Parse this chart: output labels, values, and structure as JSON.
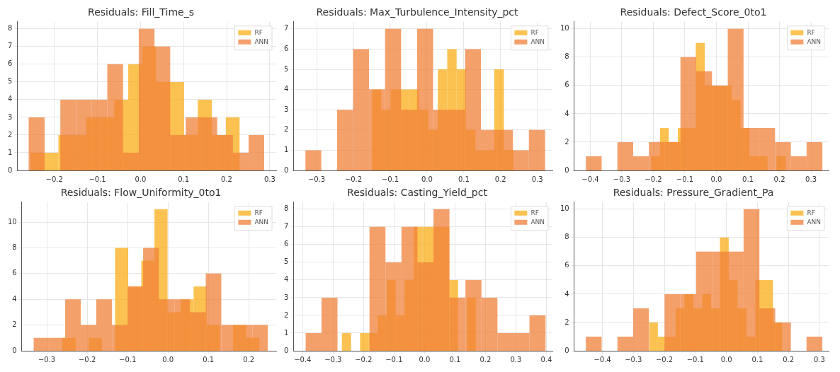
{
  "chart_data": [
    {
      "type": "bar",
      "title": "Residuals: Fill_Time_s",
      "legend": "top right",
      "grid": true,
      "xlim": [
        -0.286,
        0.315
      ],
      "xticks": [
        {
          "value": -0.2,
          "label": "−0.2"
        },
        {
          "value": -0.1,
          "label": "−0.1"
        },
        {
          "value": 0,
          "label": "0.0"
        },
        0.1,
        0.2,
        0.3
      ],
      "ylim": [
        0,
        8.4
      ],
      "yticks": [
        0,
        1,
        2,
        3,
        4,
        5,
        6,
        7,
        8
      ],
      "series": [
        {
          "name": "RF",
          "color": "#fbc252",
          "x": [
            -0.239,
            -0.207,
            -0.174,
            -0.142,
            -0.11,
            -0.077,
            -0.045,
            -0.012,
            0.02,
            0.052,
            0.085,
            0.117,
            0.149,
            0.182,
            0.214
          ],
          "values": [
            1,
            1,
            2,
            2,
            3,
            3,
            4,
            6,
            7,
            5,
            5,
            2,
            4,
            2,
            3
          ]
        },
        {
          "name": "ANN",
          "color": "#f4a06b",
          "x": [
            -0.241,
            -0.204,
            -0.168,
            -0.131,
            -0.095,
            -0.059,
            -0.022,
            0.014,
            0.051,
            0.087,
            0.123,
            0.16,
            0.196,
            0.233,
            0.269
          ],
          "values": [
            3,
            0,
            4,
            4,
            4,
            6,
            1,
            8,
            7,
            2,
            3,
            3,
            2,
            1,
            2
          ]
        }
      ]
    },
    {
      "type": "bar",
      "title": "Residuals: Max_Turbulence_Intensity_pct",
      "legend": "top right",
      "grid": true,
      "xlim": [
        -0.363,
        0.341
      ],
      "xticks": [
        {
          "value": -0.3,
          "label": "−0.3"
        },
        {
          "value": -0.2,
          "label": "−0.2"
        },
        {
          "value": -0.1,
          "label": "−0.1"
        },
        {
          "value": 0,
          "label": "0.0"
        },
        0.1,
        0.2,
        0.3
      ],
      "ylim": [
        0,
        7.35
      ],
      "yticks": [
        0,
        1,
        2,
        3,
        4,
        5,
        6,
        7
      ],
      "series": [
        {
          "name": "RF",
          "color": "#fbc252",
          "x": [
            -0.137,
            -0.112,
            -0.086,
            -0.06,
            -0.035,
            -0.009,
            0.017,
            0.042,
            0.068,
            0.093,
            0.119,
            0.145,
            0.17,
            0.196,
            0.222
          ],
          "values": [
            4,
            3,
            4,
            4,
            4,
            3,
            2,
            5,
            6,
            5,
            2,
            1,
            1,
            5,
            1
          ]
        },
        {
          "name": "ANN",
          "color": "#f4a06b",
          "x": [
            -0.309,
            -0.266,
            -0.223,
            -0.179,
            -0.136,
            -0.092,
            -0.049,
            -0.005,
            0.038,
            0.082,
            0.125,
            0.168,
            0.212,
            0.255,
            0.299
          ],
          "values": [
            1,
            0,
            3,
            6,
            4,
            7,
            3,
            7,
            3,
            3,
            6,
            2,
            2,
            1,
            2
          ]
        }
      ]
    },
    {
      "type": "bar",
      "title": "Residuals: Defect_Score_0to1",
      "legend": "top right",
      "grid": true,
      "xlim": [
        -0.451,
        0.356
      ],
      "xticks": [
        {
          "value": -0.4,
          "label": "−0.4"
        },
        {
          "value": -0.3,
          "label": "−0.3"
        },
        {
          "value": -0.2,
          "label": "−0.2"
        },
        {
          "value": -0.1,
          "label": "−0.1"
        },
        {
          "value": 0,
          "label": "0.0"
        },
        0.1,
        0.2,
        0.3
      ],
      "ylim": [
        0,
        10.5
      ],
      "yticks": [
        0,
        2,
        4,
        6,
        8,
        10
      ],
      "series": [
        {
          "name": "RF",
          "color": "#fbc252",
          "x": [
            -0.193,
            -0.165,
            -0.137,
            -0.108,
            -0.08,
            -0.051,
            -0.023,
            0.005,
            0.034,
            0.062,
            0.091,
            0.119,
            0.148,
            0.176,
            0.205
          ],
          "values": [
            1,
            3,
            2,
            3,
            3,
            9,
            6,
            6,
            6,
            5,
            3,
            1,
            1,
            0,
            1
          ]
        },
        {
          "name": "ANN",
          "color": "#f4a06b",
          "x": [
            -0.389,
            -0.339,
            -0.289,
            -0.239,
            -0.189,
            -0.139,
            -0.089,
            -0.039,
            0.011,
            0.061,
            0.111,
            0.161,
            0.211,
            0.261,
            0.311
          ],
          "values": [
            1,
            0,
            2,
            1,
            2,
            2,
            8,
            7,
            6,
            10,
            3,
            3,
            2,
            1,
            2
          ]
        }
      ]
    },
    {
      "type": "bar",
      "title": "Residuals: Flow_Uniformity_0to1",
      "legend": "top right",
      "grid": true,
      "xlim": [
        -0.362,
        0.268
      ],
      "xticks": [
        {
          "value": -0.3,
          "label": "−0.3"
        },
        {
          "value": -0.2,
          "label": "−0.2"
        },
        {
          "value": -0.1,
          "label": "−0.1"
        },
        {
          "value": 0,
          "label": "0.0"
        },
        0.1,
        0.2
      ],
      "ylim": [
        0,
        11.55
      ],
      "yticks": [
        0,
        2,
        4,
        6,
        8,
        10
      ],
      "series": [
        {
          "name": "RF",
          "color": "#fbc252",
          "x": [
            -0.245,
            -0.212,
            -0.18,
            -0.147,
            -0.115,
            -0.082,
            -0.05,
            -0.017,
            0.015,
            0.047,
            0.08,
            0.112,
            0.145,
            0.177,
            0.21
          ],
          "values": [
            1,
            0,
            1,
            0,
            8,
            5,
            7,
            11,
            3,
            4,
            5,
            2,
            0,
            2,
            1
          ]
        },
        {
          "name": "ANN",
          "color": "#f4a06b",
          "x": [
            -0.313,
            -0.274,
            -0.235,
            -0.197,
            -0.158,
            -0.119,
            -0.081,
            -0.042,
            -0.003,
            0.035,
            0.074,
            0.113,
            0.151,
            0.19,
            0.228
          ],
          "values": [
            1,
            1,
            4,
            2,
            4,
            2,
            5,
            8,
            4,
            4,
            3,
            6,
            2,
            2,
            2
          ]
        }
      ]
    },
    {
      "type": "bar",
      "title": "Residuals: Casting_Yield_pct",
      "legend": "top right",
      "grid": true,
      "xlim": [
        -0.43,
        0.42
      ],
      "xticks": [
        {
          "value": -0.4,
          "label": "−0.4"
        },
        {
          "value": -0.3,
          "label": "−0.3"
        },
        {
          "value": -0.2,
          "label": "−0.2"
        },
        {
          "value": -0.1,
          "label": "−0.1"
        },
        {
          "value": 0,
          "label": "0.0"
        },
        0.1,
        0.2,
        0.3,
        0.4
      ],
      "ylim": [
        0,
        8.4
      ],
      "yticks": [
        0,
        1,
        2,
        3,
        4,
        5,
        6,
        7,
        8
      ],
      "series": [
        {
          "name": "RF",
          "color": "#fbc252",
          "x": [
            -0.256,
            -0.226,
            -0.197,
            -0.168,
            -0.138,
            -0.109,
            -0.08,
            -0.05,
            -0.021,
            0.008,
            0.037,
            0.067,
            0.096,
            0.125,
            0.154
          ],
          "values": [
            1,
            0,
            1,
            1,
            2,
            4,
            2,
            4,
            7,
            7,
            7,
            7,
            4,
            0,
            3
          ]
        },
        {
          "name": "ANN",
          "color": "#f4a06b",
          "x": [
            -0.364,
            -0.312,
            -0.259,
            -0.207,
            -0.154,
            -0.102,
            -0.049,
            0.003,
            0.056,
            0.108,
            0.161,
            0.213,
            0.266,
            0.318,
            0.371
          ],
          "values": [
            1,
            3,
            0,
            0,
            7,
            5,
            7,
            5,
            8,
            3,
            4,
            3,
            1,
            1,
            2
          ]
        }
      ]
    },
    {
      "type": "bar",
      "title": "Residuals: Pressure_Gradient_Pa",
      "legend": "top right",
      "grid": true,
      "xlim": [
        -0.491,
        0.33
      ],
      "xticks": [
        {
          "value": -0.4,
          "label": "−0.4"
        },
        {
          "value": -0.3,
          "label": "−0.3"
        },
        {
          "value": -0.2,
          "label": "−0.2"
        },
        {
          "value": -0.1,
          "label": "−0.1"
        },
        {
          "value": 0,
          "label": "0.0"
        },
        0.1,
        0.2,
        0.3
      ],
      "ylim": [
        0,
        10.5
      ],
      "yticks": [
        0,
        2,
        4,
        6,
        8,
        10
      ],
      "series": [
        {
          "name": "RF",
          "color": "#fbc252",
          "x": [
            -0.235,
            -0.207,
            -0.178,
            -0.15,
            -0.121,
            -0.092,
            -0.064,
            -0.035,
            -0.007,
            0.022,
            0.05,
            0.079,
            0.108,
            0.136,
            0.165
          ],
          "values": [
            2,
            1,
            1,
            3,
            4,
            3,
            4,
            3,
            8,
            5,
            3,
            1,
            5,
            5,
            2
          ]
        },
        {
          "name": "ANN",
          "color": "#f4a06b",
          "x": [
            -0.428,
            -0.377,
            -0.326,
            -0.275,
            -0.225,
            -0.174,
            -0.123,
            -0.072,
            -0.021,
            0.03,
            0.081,
            0.132,
            0.183,
            0.233,
            0.284
          ],
          "values": [
            1,
            0,
            1,
            3,
            0,
            4,
            4,
            7,
            7,
            7,
            10,
            3,
            2,
            0,
            1
          ]
        }
      ]
    }
  ]
}
